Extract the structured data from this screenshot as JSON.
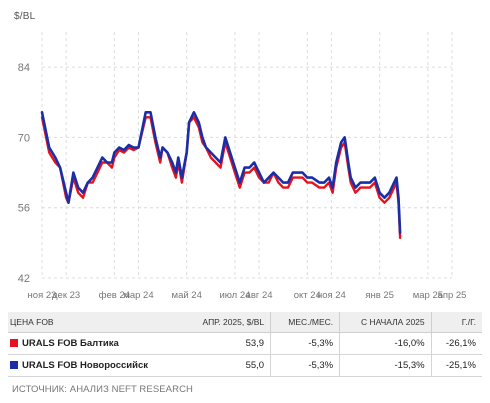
{
  "chart_data": {
    "type": "line",
    "unit_label": "$/BL",
    "ylim": [
      42,
      91
    ],
    "yticks": [
      42,
      56,
      70,
      84
    ],
    "grid": true,
    "x_tick_labels": [
      "ноя 23",
      "дек 23",
      "фев 24",
      "мар 24",
      "май 24",
      "июл 24",
      "авг 24",
      "окт 24",
      "ноя 24",
      "янв 25",
      "мар 25",
      "апр 25"
    ],
    "x_tick_positions": [
      0,
      1,
      3,
      4,
      6,
      8,
      9,
      11,
      12,
      14,
      16,
      17
    ],
    "x_range": [
      0,
      17
    ],
    "series": [
      {
        "name": "URALS FOB Балтика",
        "color": "#e5131d",
        "points": [
          [
            0.0,
            74
          ],
          [
            0.3,
            67
          ],
          [
            0.55,
            65
          ],
          [
            0.75,
            64
          ],
          [
            1.0,
            58
          ],
          [
            1.1,
            57
          ],
          [
            1.3,
            62
          ],
          [
            1.5,
            59
          ],
          [
            1.7,
            58
          ],
          [
            1.9,
            61
          ],
          [
            2.1,
            61
          ],
          [
            2.3,
            63
          ],
          [
            2.5,
            65
          ],
          [
            2.7,
            65
          ],
          [
            2.9,
            64
          ],
          [
            3.0,
            66
          ],
          [
            3.2,
            67.5
          ],
          [
            3.4,
            67
          ],
          [
            3.6,
            68
          ],
          [
            3.8,
            67.5
          ],
          [
            4.0,
            68
          ],
          [
            4.3,
            74
          ],
          [
            4.5,
            74
          ],
          [
            4.7,
            69
          ],
          [
            4.9,
            65
          ],
          [
            5.0,
            68
          ],
          [
            5.2,
            67
          ],
          [
            5.4,
            64
          ],
          [
            5.55,
            62
          ],
          [
            5.65,
            65
          ],
          [
            5.8,
            61
          ],
          [
            6.0,
            67
          ],
          [
            6.1,
            73
          ],
          [
            6.3,
            74
          ],
          [
            6.5,
            72
          ],
          [
            6.65,
            69
          ],
          [
            6.8,
            68
          ],
          [
            7.0,
            66
          ],
          [
            7.2,
            65
          ],
          [
            7.4,
            64
          ],
          [
            7.6,
            69
          ],
          [
            7.8,
            66
          ],
          [
            8.0,
            63
          ],
          [
            8.2,
            60
          ],
          [
            8.4,
            63
          ],
          [
            8.6,
            63
          ],
          [
            8.8,
            64
          ],
          [
            9.0,
            62
          ],
          [
            9.2,
            61
          ],
          [
            9.4,
            61
          ],
          [
            9.6,
            63
          ],
          [
            9.8,
            61
          ],
          [
            10.0,
            60
          ],
          [
            10.2,
            60
          ],
          [
            10.4,
            62
          ],
          [
            10.6,
            62
          ],
          [
            10.8,
            62
          ],
          [
            11.0,
            61
          ],
          [
            11.2,
            61
          ],
          [
            11.5,
            60
          ],
          [
            11.7,
            60
          ],
          [
            11.9,
            61
          ],
          [
            12.05,
            59
          ],
          [
            12.2,
            64
          ],
          [
            12.4,
            68
          ],
          [
            12.55,
            69
          ],
          [
            12.7,
            64
          ],
          [
            12.8,
            61
          ],
          [
            13.0,
            59
          ],
          [
            13.2,
            60
          ],
          [
            13.4,
            60
          ],
          [
            13.6,
            60
          ],
          [
            13.8,
            61
          ],
          [
            14.0,
            58
          ],
          [
            14.2,
            57
          ],
          [
            14.4,
            58
          ],
          [
            14.6,
            60
          ],
          [
            14.7,
            61
          ],
          [
            14.78,
            57
          ],
          [
            14.85,
            50
          ]
        ]
      },
      {
        "name": "URALS FOB Новороссийск",
        "color": "#1a2ea8",
        "points": [
          [
            0.0,
            75
          ],
          [
            0.3,
            68
          ],
          [
            0.55,
            66
          ],
          [
            0.75,
            64
          ],
          [
            1.0,
            59
          ],
          [
            1.1,
            57
          ],
          [
            1.3,
            63
          ],
          [
            1.5,
            60
          ],
          [
            1.7,
            59
          ],
          [
            1.9,
            61
          ],
          [
            2.1,
            62
          ],
          [
            2.3,
            64
          ],
          [
            2.5,
            66
          ],
          [
            2.7,
            65
          ],
          [
            2.9,
            65
          ],
          [
            3.0,
            67
          ],
          [
            3.2,
            68
          ],
          [
            3.4,
            67.5
          ],
          [
            3.6,
            68.5
          ],
          [
            3.8,
            68
          ],
          [
            4.0,
            68
          ],
          [
            4.3,
            75
          ],
          [
            4.5,
            75
          ],
          [
            4.7,
            70
          ],
          [
            4.9,
            66
          ],
          [
            5.0,
            68
          ],
          [
            5.2,
            67
          ],
          [
            5.4,
            65
          ],
          [
            5.55,
            63
          ],
          [
            5.65,
            66
          ],
          [
            5.8,
            62
          ],
          [
            6.0,
            67
          ],
          [
            6.1,
            73
          ],
          [
            6.3,
            75
          ],
          [
            6.5,
            73
          ],
          [
            6.65,
            70
          ],
          [
            6.8,
            68
          ],
          [
            7.0,
            67
          ],
          [
            7.2,
            66
          ],
          [
            7.4,
            65
          ],
          [
            7.6,
            70
          ],
          [
            7.8,
            67
          ],
          [
            8.0,
            64
          ],
          [
            8.2,
            61
          ],
          [
            8.4,
            64
          ],
          [
            8.6,
            64
          ],
          [
            8.8,
            65
          ],
          [
            9.0,
            63
          ],
          [
            9.2,
            61
          ],
          [
            9.4,
            62
          ],
          [
            9.6,
            63
          ],
          [
            9.8,
            62
          ],
          [
            10.0,
            61
          ],
          [
            10.2,
            61
          ],
          [
            10.4,
            63
          ],
          [
            10.6,
            63
          ],
          [
            10.8,
            63
          ],
          [
            11.0,
            62
          ],
          [
            11.2,
            62
          ],
          [
            11.5,
            61
          ],
          [
            11.7,
            61
          ],
          [
            11.9,
            62
          ],
          [
            12.05,
            60
          ],
          [
            12.2,
            65
          ],
          [
            12.4,
            69
          ],
          [
            12.55,
            70
          ],
          [
            12.7,
            65
          ],
          [
            12.8,
            62
          ],
          [
            13.0,
            60
          ],
          [
            13.2,
            61
          ],
          [
            13.4,
            61
          ],
          [
            13.6,
            61
          ],
          [
            13.8,
            62
          ],
          [
            14.0,
            59
          ],
          [
            14.2,
            58
          ],
          [
            14.4,
            59
          ],
          [
            14.6,
            61
          ],
          [
            14.7,
            62
          ],
          [
            14.78,
            58
          ],
          [
            14.85,
            51
          ]
        ]
      }
    ]
  },
  "table": {
    "headers": [
      "ЦЕНА FOB",
      "АПР. 2025, $/BL",
      "МЕС./МЕС.",
      "С НАЧАЛА 2025",
      "Г./Г."
    ],
    "rows": [
      {
        "name": "URALS FOB Балтика",
        "color": "#e5131d",
        "values": [
          "53,9",
          "-5,3%",
          "-16,0%",
          "-26,1%"
        ]
      },
      {
        "name": "URALS FOB Новороссийск",
        "color": "#1a2ea8",
        "values": [
          "55,0",
          "-5,3%",
          "-15,3%",
          "-25,1%"
        ]
      }
    ]
  },
  "source": "ИСТОЧНИК: АНАЛИЗ NEFT RESEARCH"
}
